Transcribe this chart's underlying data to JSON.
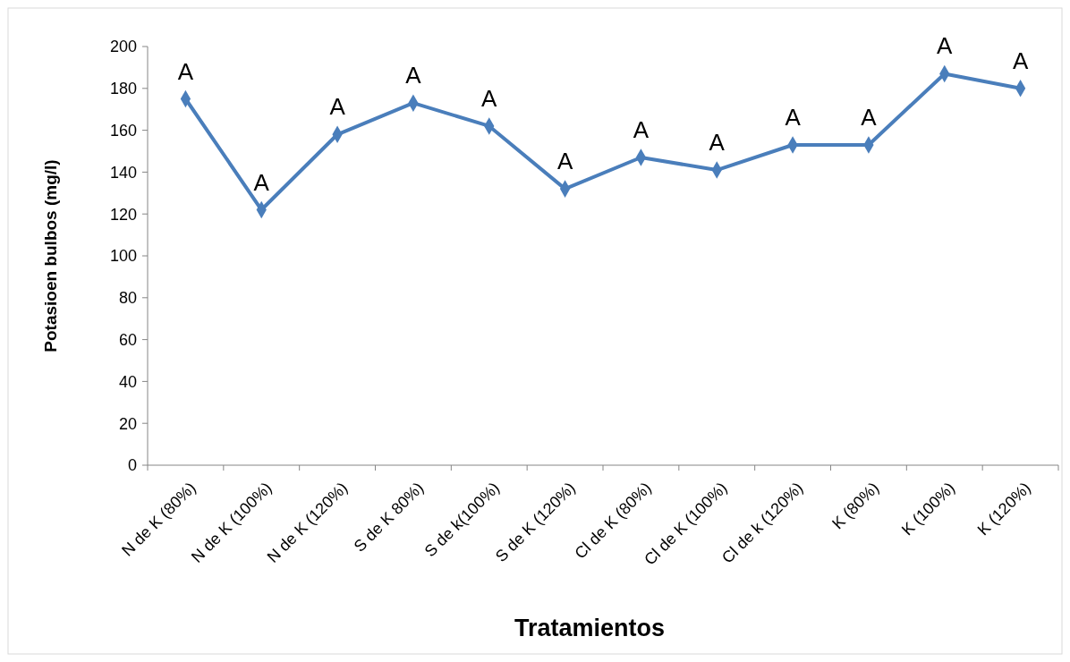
{
  "chart_data": {
    "type": "line",
    "xlabel": "Tratamientos",
    "ylabel": "Potasioen bulbos (mg/l)",
    "categories": [
      "N de K (80%)",
      "N de K (100%)",
      "N de K (120%)",
      "S de K 80%)",
      "S de k(100%)",
      "S de K (120%)",
      "Cl de K (80%)",
      "Cl de K (100%)",
      "Cl de k (120%)",
      "K (80%)",
      "K (100%)",
      "K (120%)"
    ],
    "series": [
      {
        "color": "#4a7ebb",
        "values": [
          175,
          122,
          158,
          173,
          162,
          132,
          147,
          141,
          153,
          153,
          187,
          180
        ]
      }
    ],
    "ylim": [
      0,
      200
    ],
    "yticks": [
      0,
      20,
      40,
      60,
      80,
      100,
      120,
      140,
      160,
      180,
      200
    ],
    "grid": false,
    "marker": "diamond",
    "line_style": "solid",
    "annotations": [
      {
        "text": "A",
        "x": "N de K (80%)",
        "y": 175
      },
      {
        "text": "A",
        "x": "N de K (100%)",
        "y": 122
      },
      {
        "text": "A",
        "x": "N de K (120%)",
        "y": 158
      },
      {
        "text": "A",
        "x": "S de K 80%)",
        "y": 173
      },
      {
        "text": "A",
        "x": "S de k(100%)",
        "y": 162
      },
      {
        "text": "A",
        "x": "S de K (120%)",
        "y": 132
      },
      {
        "text": "A",
        "x": "Cl de K (80%)",
        "y": 147
      },
      {
        "text": "A",
        "x": "Cl de K (100%)",
        "y": 141
      },
      {
        "text": "A",
        "x": "Cl de k (120%)",
        "y": 153
      },
      {
        "text": "A",
        "x": "K (80%)",
        "y": 153
      },
      {
        "text": "A",
        "x": "K (100%)",
        "y": 187
      },
      {
        "text": "A",
        "x": "K (120%)",
        "y": 180
      }
    ]
  }
}
